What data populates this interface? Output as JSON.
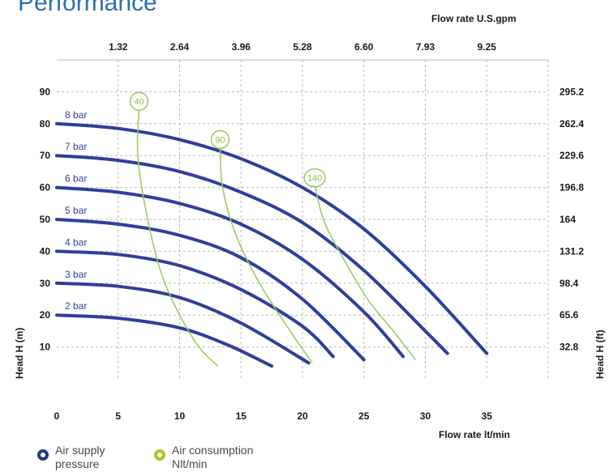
{
  "page": {
    "title": "Performance"
  },
  "colors": {
    "pressure_curve": "#2f3f9b",
    "air_curve": "#98c95a",
    "air_label": "#8fc23c",
    "grid": "#b9b9b9",
    "title": "#2b6fb3"
  },
  "legend": {
    "pressure": {
      "line1": "Air supply",
      "line2": "pressure",
      "ring_color": "#1f3a8a"
    },
    "air": {
      "line1": "Air consumption",
      "line2": "Nlt/min",
      "ring_color": "#a6c72b"
    }
  },
  "chart_data": {
    "type": "line",
    "xlabel": "Flow rate  lt/min",
    "x2label": "Flow rate U.S.gpm",
    "ylabel": "Head H (m)",
    "y2label": "Head H (ft)",
    "xlim": [
      0,
      40
    ],
    "ylim": [
      0,
      100
    ],
    "grid": true,
    "x_ticks": [
      "0",
      "5",
      "10",
      "15",
      "20",
      "25",
      "30",
      "35"
    ],
    "x_tick_values": [
      0,
      5,
      10,
      15,
      20,
      25,
      30,
      35
    ],
    "x2_ticks": [
      "1.32",
      "2.64",
      "3.96",
      "5.28",
      "6.60",
      "7.93",
      "9.25"
    ],
    "y_ticks": [
      "10",
      "20",
      "30",
      "40",
      "50",
      "60",
      "70",
      "80",
      "90"
    ],
    "y_tick_values": [
      10,
      20,
      30,
      40,
      50,
      60,
      70,
      80,
      90
    ],
    "y2_ticks": [
      "32.8",
      "65.6",
      "98.4",
      "131.2",
      "164",
      "196.8",
      "229.6",
      "262.4",
      "295.2"
    ],
    "series": [
      {
        "name": "2 bar",
        "kind": "pressure",
        "points": [
          [
            0,
            20
          ],
          [
            5,
            19
          ],
          [
            10,
            16
          ],
          [
            14,
            10.5
          ],
          [
            17.5,
            4
          ]
        ]
      },
      {
        "name": "3 bar",
        "kind": "pressure",
        "points": [
          [
            0,
            30
          ],
          [
            5,
            29
          ],
          [
            10,
            25.5
          ],
          [
            15,
            17.5
          ],
          [
            20.5,
            5
          ]
        ]
      },
      {
        "name": "4 bar",
        "kind": "pressure",
        "points": [
          [
            0,
            40
          ],
          [
            5,
            39
          ],
          [
            10,
            35.5
          ],
          [
            15,
            28
          ],
          [
            20,
            16.5
          ],
          [
            22.5,
            7
          ]
        ]
      },
      {
        "name": "5 bar",
        "kind": "pressure",
        "points": [
          [
            0,
            50
          ],
          [
            5,
            48.5
          ],
          [
            10,
            45
          ],
          [
            15,
            38
          ],
          [
            20,
            25
          ],
          [
            25,
            6
          ]
        ]
      },
      {
        "name": "6 bar",
        "kind": "pressure",
        "points": [
          [
            0,
            60
          ],
          [
            5,
            58.5
          ],
          [
            10,
            55
          ],
          [
            15,
            48.5
          ],
          [
            20,
            37.5
          ],
          [
            25,
            21
          ],
          [
            28.2,
            7
          ]
        ]
      },
      {
        "name": "7 bar",
        "kind": "pressure",
        "points": [
          [
            0,
            70
          ],
          [
            5,
            68.5
          ],
          [
            10,
            65
          ],
          [
            15,
            58.5
          ],
          [
            20,
            49
          ],
          [
            25,
            34
          ],
          [
            30,
            15
          ],
          [
            31.8,
            8
          ]
        ]
      },
      {
        "name": "8 bar",
        "kind": "pressure",
        "points": [
          [
            0,
            80
          ],
          [
            5,
            78.5
          ],
          [
            10,
            75
          ],
          [
            15,
            69
          ],
          [
            20,
            60
          ],
          [
            25,
            47
          ],
          [
            30,
            29
          ],
          [
            35,
            8
          ]
        ]
      },
      {
        "name": "40",
        "kind": "air",
        "points": [
          [
            6.7,
            85
          ],
          [
            6.6,
            70
          ],
          [
            7.4,
            50
          ],
          [
            8.8,
            30
          ],
          [
            11.2,
            12
          ],
          [
            13.1,
            4
          ]
        ]
      },
      {
        "name": "90",
        "kind": "air",
        "points": [
          [
            13.3,
            73
          ],
          [
            13.5,
            60
          ],
          [
            14.6,
            45
          ],
          [
            16.5,
            30
          ],
          [
            19,
            15
          ],
          [
            20.8,
            5
          ]
        ]
      },
      {
        "name": "140",
        "kind": "air",
        "points": [
          [
            21,
            61
          ],
          [
            21.7,
            50
          ],
          [
            23,
            40
          ],
          [
            25.3,
            25
          ],
          [
            27.4,
            15
          ],
          [
            29.2,
            6
          ]
        ]
      }
    ]
  }
}
